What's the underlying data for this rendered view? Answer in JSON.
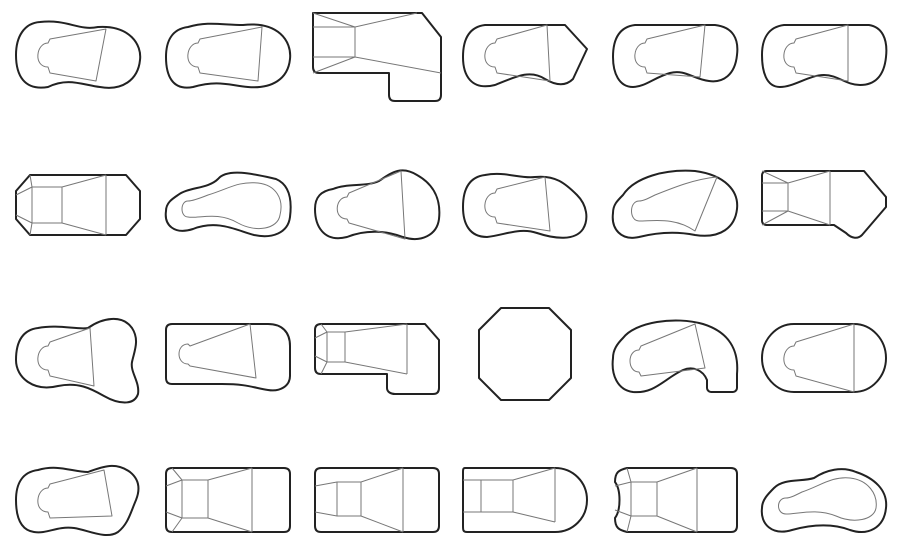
{
  "colors": {
    "background": "#ffffff",
    "outline": "#222222",
    "detail": "#777777"
  },
  "grid": {
    "rows": 4,
    "columns": 6
  },
  "shapes": [
    {
      "kind": "kidney-blob"
    },
    {
      "kind": "kidney-blob"
    },
    {
      "kind": "l-shape-rect"
    },
    {
      "kind": "pointed-kidney"
    },
    {
      "kind": "kidney-blob"
    },
    {
      "kind": "kidney-blob"
    },
    {
      "kind": "clipped-rect"
    },
    {
      "kind": "wavy-kidney"
    },
    {
      "kind": "bulb-kidney"
    },
    {
      "kind": "kidney-blob"
    },
    {
      "kind": "bean"
    },
    {
      "kind": "arrow-rect"
    },
    {
      "kind": "figure-eight"
    },
    {
      "kind": "rounded-rect"
    },
    {
      "kind": "l-shape-rect"
    },
    {
      "kind": "octagon"
    },
    {
      "kind": "hook-bean"
    },
    {
      "kind": "pill"
    },
    {
      "kind": "kidney-blob"
    },
    {
      "kind": "rounded-rect-steps"
    },
    {
      "kind": "rounded-rect-steps"
    },
    {
      "kind": "half-round-rect"
    },
    {
      "kind": "rounded-rect-steps"
    },
    {
      "kind": "wavy-kidney"
    }
  ]
}
